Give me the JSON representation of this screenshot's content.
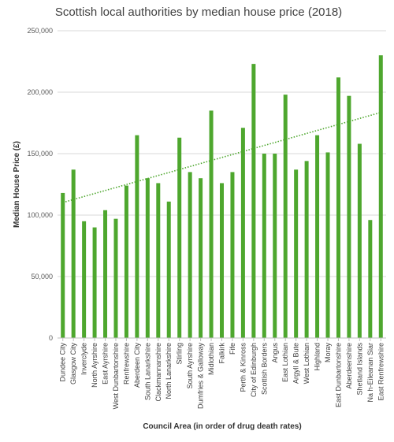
{
  "chart_data": {
    "type": "bar",
    "title": "Scottish local authorities by median house price (2018)",
    "xlabel": "Council Area (in order of drug death rates)",
    "ylabel": "Median House Price (£)",
    "ylim": [
      0,
      250000
    ],
    "yticks": [
      0,
      50000,
      100000,
      150000,
      200000,
      250000
    ],
    "ytick_labels": [
      "0",
      "50,000",
      "100,000",
      "150,000",
      "200,000",
      "250,000"
    ],
    "grid": true,
    "trendline": "linear",
    "bar_color": "#4EA72E",
    "trend_color": "#4EA72E",
    "grid_color": "#d9d9d9",
    "categories": [
      "Dundee City",
      "Glasgow City",
      "Inverclyde",
      "North Ayrshire",
      "East Ayrshire",
      "West Dunbartonshire",
      "Renfrewshire",
      "Aberdeen City",
      "South Lanarkshire",
      "Clackmannanshire",
      "North Lanarkshire",
      "Stirling",
      "South Ayrshire",
      "Dumfries & Galloway",
      "Midlothian",
      "Falkirk",
      "Fife",
      "Perth & Kinross",
      "City of Edinburgh",
      "Scottish Borders",
      "Angus",
      "East Lothian",
      "Argyll & Bute",
      "West Lothian",
      "Highland",
      "Moray",
      "East Dunbartonshire",
      "Aberdeenshire",
      "Shetland Islands",
      "Na h-Eileanan Siar",
      "East Renfrewshire"
    ],
    "values": [
      118000,
      137000,
      95000,
      90000,
      104000,
      97000,
      124000,
      165000,
      130000,
      126000,
      111000,
      163000,
      135000,
      130000,
      185000,
      126000,
      135000,
      171000,
      223000,
      150000,
      150000,
      198000,
      137000,
      144000,
      165000,
      151000,
      212000,
      197000,
      158000,
      96000,
      230000
    ]
  }
}
